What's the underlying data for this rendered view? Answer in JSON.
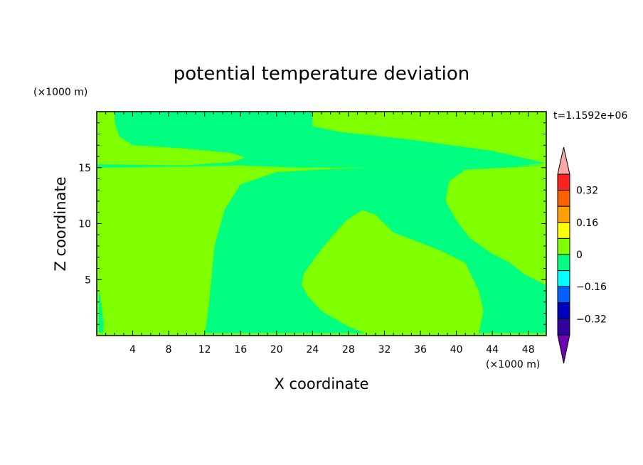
{
  "chart_data": {
    "type": "heatmap",
    "title": "potential temperature deviation",
    "xlabel": "X coordinate",
    "ylabel": "Z coordinate",
    "x_unit": "(×1000 m)",
    "y_unit": "(×1000 m)",
    "time_label": "t=1.1592e+06",
    "xlim": [
      0,
      50
    ],
    "ylim": [
      0,
      20
    ],
    "x_ticks": [
      4,
      8,
      12,
      16,
      20,
      24,
      28,
      32,
      36,
      40,
      44,
      48
    ],
    "y_ticks": [
      5,
      10,
      15
    ],
    "colorbar": {
      "labels": [
        0.32,
        0.16,
        0,
        -0.16,
        -0.32
      ],
      "label_texts": [
        "0.32",
        "0.16",
        "0",
        "−0.16",
        "−0.32"
      ],
      "colors": [
        "#f8a8a8",
        "#ff2020",
        "#ff6000",
        "#ffa000",
        "#ffff00",
        "#80ff00",
        "#00ff80",
        "#00ffff",
        "#0060ff",
        "#0000c0",
        "#3000a0",
        "#7000b0"
      ]
    },
    "regions": [
      {
        "level": "0 to 0.08",
        "color": "#80ff00",
        "polygon": [
          [
            0,
            0
          ],
          [
            50,
            0
          ],
          [
            50,
            20
          ],
          [
            0,
            20
          ]
        ]
      },
      {
        "level": "-0.08 to 0",
        "color": "#00ff80",
        "polygon": [
          [
            2,
            20
          ],
          [
            24,
            20
          ],
          [
            24,
            18.7
          ],
          [
            27,
            18.2
          ],
          [
            35,
            17.5
          ],
          [
            44,
            16.5
          ],
          [
            50,
            15.4
          ],
          [
            47,
            15.2
          ],
          [
            38,
            15.0
          ],
          [
            30,
            15.0
          ],
          [
            22,
            15.0
          ],
          [
            16,
            15.2
          ],
          [
            10,
            15.1
          ],
          [
            0,
            15.0
          ],
          [
            0,
            15.3
          ],
          [
            10,
            15.2
          ],
          [
            15,
            15.5
          ],
          [
            16.5,
            15.9
          ],
          [
            15,
            16.3
          ],
          [
            10,
            16.7
          ],
          [
            4,
            17.0
          ],
          [
            2.5,
            17.8
          ],
          [
            2,
            19
          ]
        ]
      },
      {
        "level": "-0.08 to 0",
        "color": "#00ff80",
        "polygon": [
          [
            0.2,
            0.3
          ],
          [
            0.7,
            0.2
          ],
          [
            0.8,
            1.0
          ],
          [
            0.4,
            3.5
          ],
          [
            0.2,
            4.0
          ]
        ]
      },
      {
        "level": "-0.08 to 0",
        "color": "#00ff80",
        "polygon": [
          [
            12,
            0.2
          ],
          [
            30,
            0.2
          ],
          [
            28,
            0.8
          ],
          [
            25,
            2.2
          ],
          [
            23.5,
            3.5
          ],
          [
            22.8,
            4.5
          ],
          [
            23,
            5.5
          ],
          [
            24.5,
            7.2
          ],
          [
            26,
            8.7
          ],
          [
            27.8,
            10.3
          ],
          [
            29.5,
            11.2
          ],
          [
            31,
            10.8
          ],
          [
            33,
            9.2
          ],
          [
            36,
            8.3
          ],
          [
            38.5,
            7.5
          ],
          [
            41,
            6.5
          ],
          [
            42.5,
            4.0
          ],
          [
            43,
            2.2
          ],
          [
            42.5,
            0.2
          ],
          [
            50,
            0.2
          ],
          [
            50,
            4.5
          ],
          [
            47.5,
            5.5
          ],
          [
            46,
            6.5
          ],
          [
            44,
            7.3
          ],
          [
            41.5,
            8.7
          ],
          [
            40,
            10.3
          ],
          [
            38.8,
            12.0
          ],
          [
            39.2,
            13.8
          ],
          [
            41,
            14.8
          ],
          [
            50,
            15.2
          ],
          [
            47,
            15.2
          ],
          [
            38,
            15.0
          ],
          [
            30,
            15.0
          ],
          [
            24,
            14.8
          ],
          [
            20,
            14.6
          ],
          [
            16,
            13.5
          ],
          [
            14.2,
            11.2
          ],
          [
            13.1,
            8.0
          ],
          [
            12.8,
            5.5
          ],
          [
            12.5,
            3.0
          ],
          [
            12.2,
            1.0
          ]
        ]
      }
    ]
  }
}
